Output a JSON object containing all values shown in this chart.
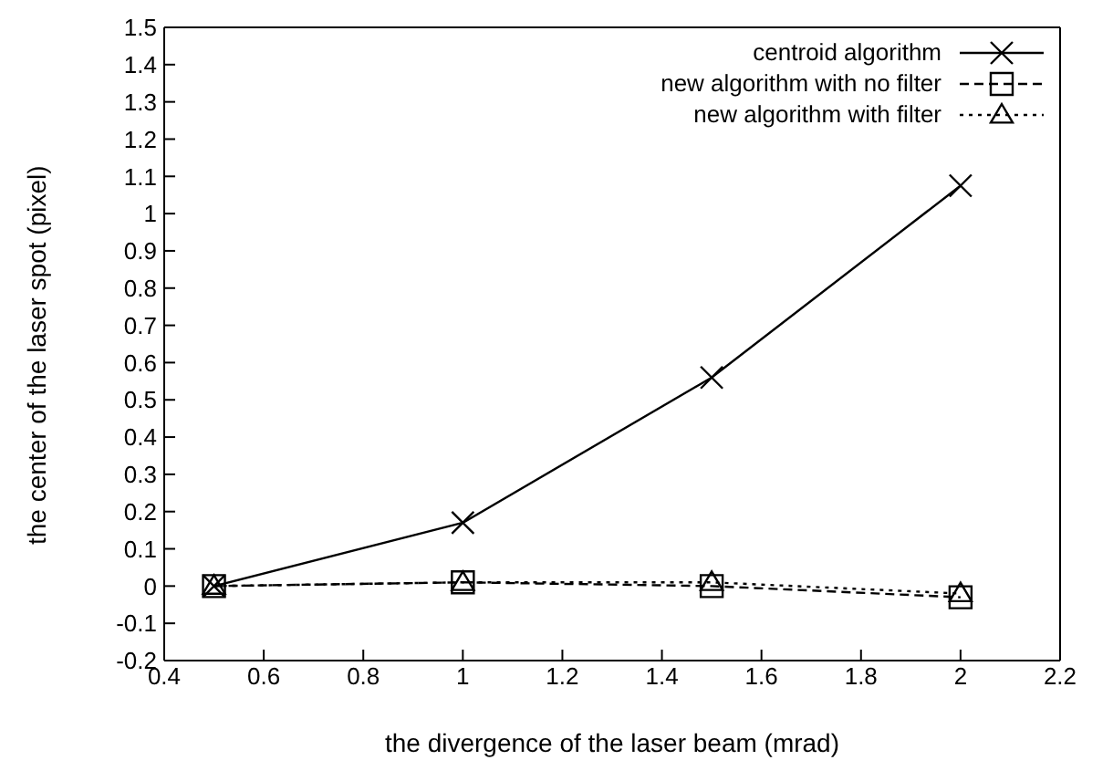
{
  "chart_data": {
    "type": "line",
    "xlabel": "the divergence of the laser beam (mrad)",
    "ylabel": "the center of the laser spot (pixel)",
    "x": [
      0.5,
      1,
      1.5,
      2
    ],
    "series": [
      {
        "name": "centroid algorithm",
        "color": "#000000",
        "values": [
          0,
          0.17,
          0.56,
          1.075
        ],
        "marker": "cross",
        "line_style": "solid"
      },
      {
        "name": "new algorithm with no filter",
        "color": "#000000",
        "values": [
          0,
          0.01,
          0,
          -0.03
        ],
        "marker": "square",
        "line_style": "dashed"
      },
      {
        "name": "new algorithm with filter",
        "color": "#000000",
        "values": [
          0,
          0.01,
          0.01,
          -0.02
        ],
        "marker": "triangle",
        "line_style": "dotted"
      }
    ],
    "xlim": [
      0.4,
      2.2
    ],
    "xticks": [
      0.4,
      0.6,
      0.8,
      1,
      1.2,
      1.4,
      1.6,
      1.8,
      2,
      2.2
    ],
    "ylim": [
      -0.2,
      1.5
    ],
    "yticks": [
      -0.2,
      -0.1,
      0,
      0.1,
      0.2,
      0.3,
      0.4,
      0.5,
      0.6,
      0.7,
      0.8,
      0.9,
      1,
      1.1,
      1.2,
      1.3,
      1.4,
      1.5
    ],
    "grid": false,
    "legend": "top right"
  }
}
